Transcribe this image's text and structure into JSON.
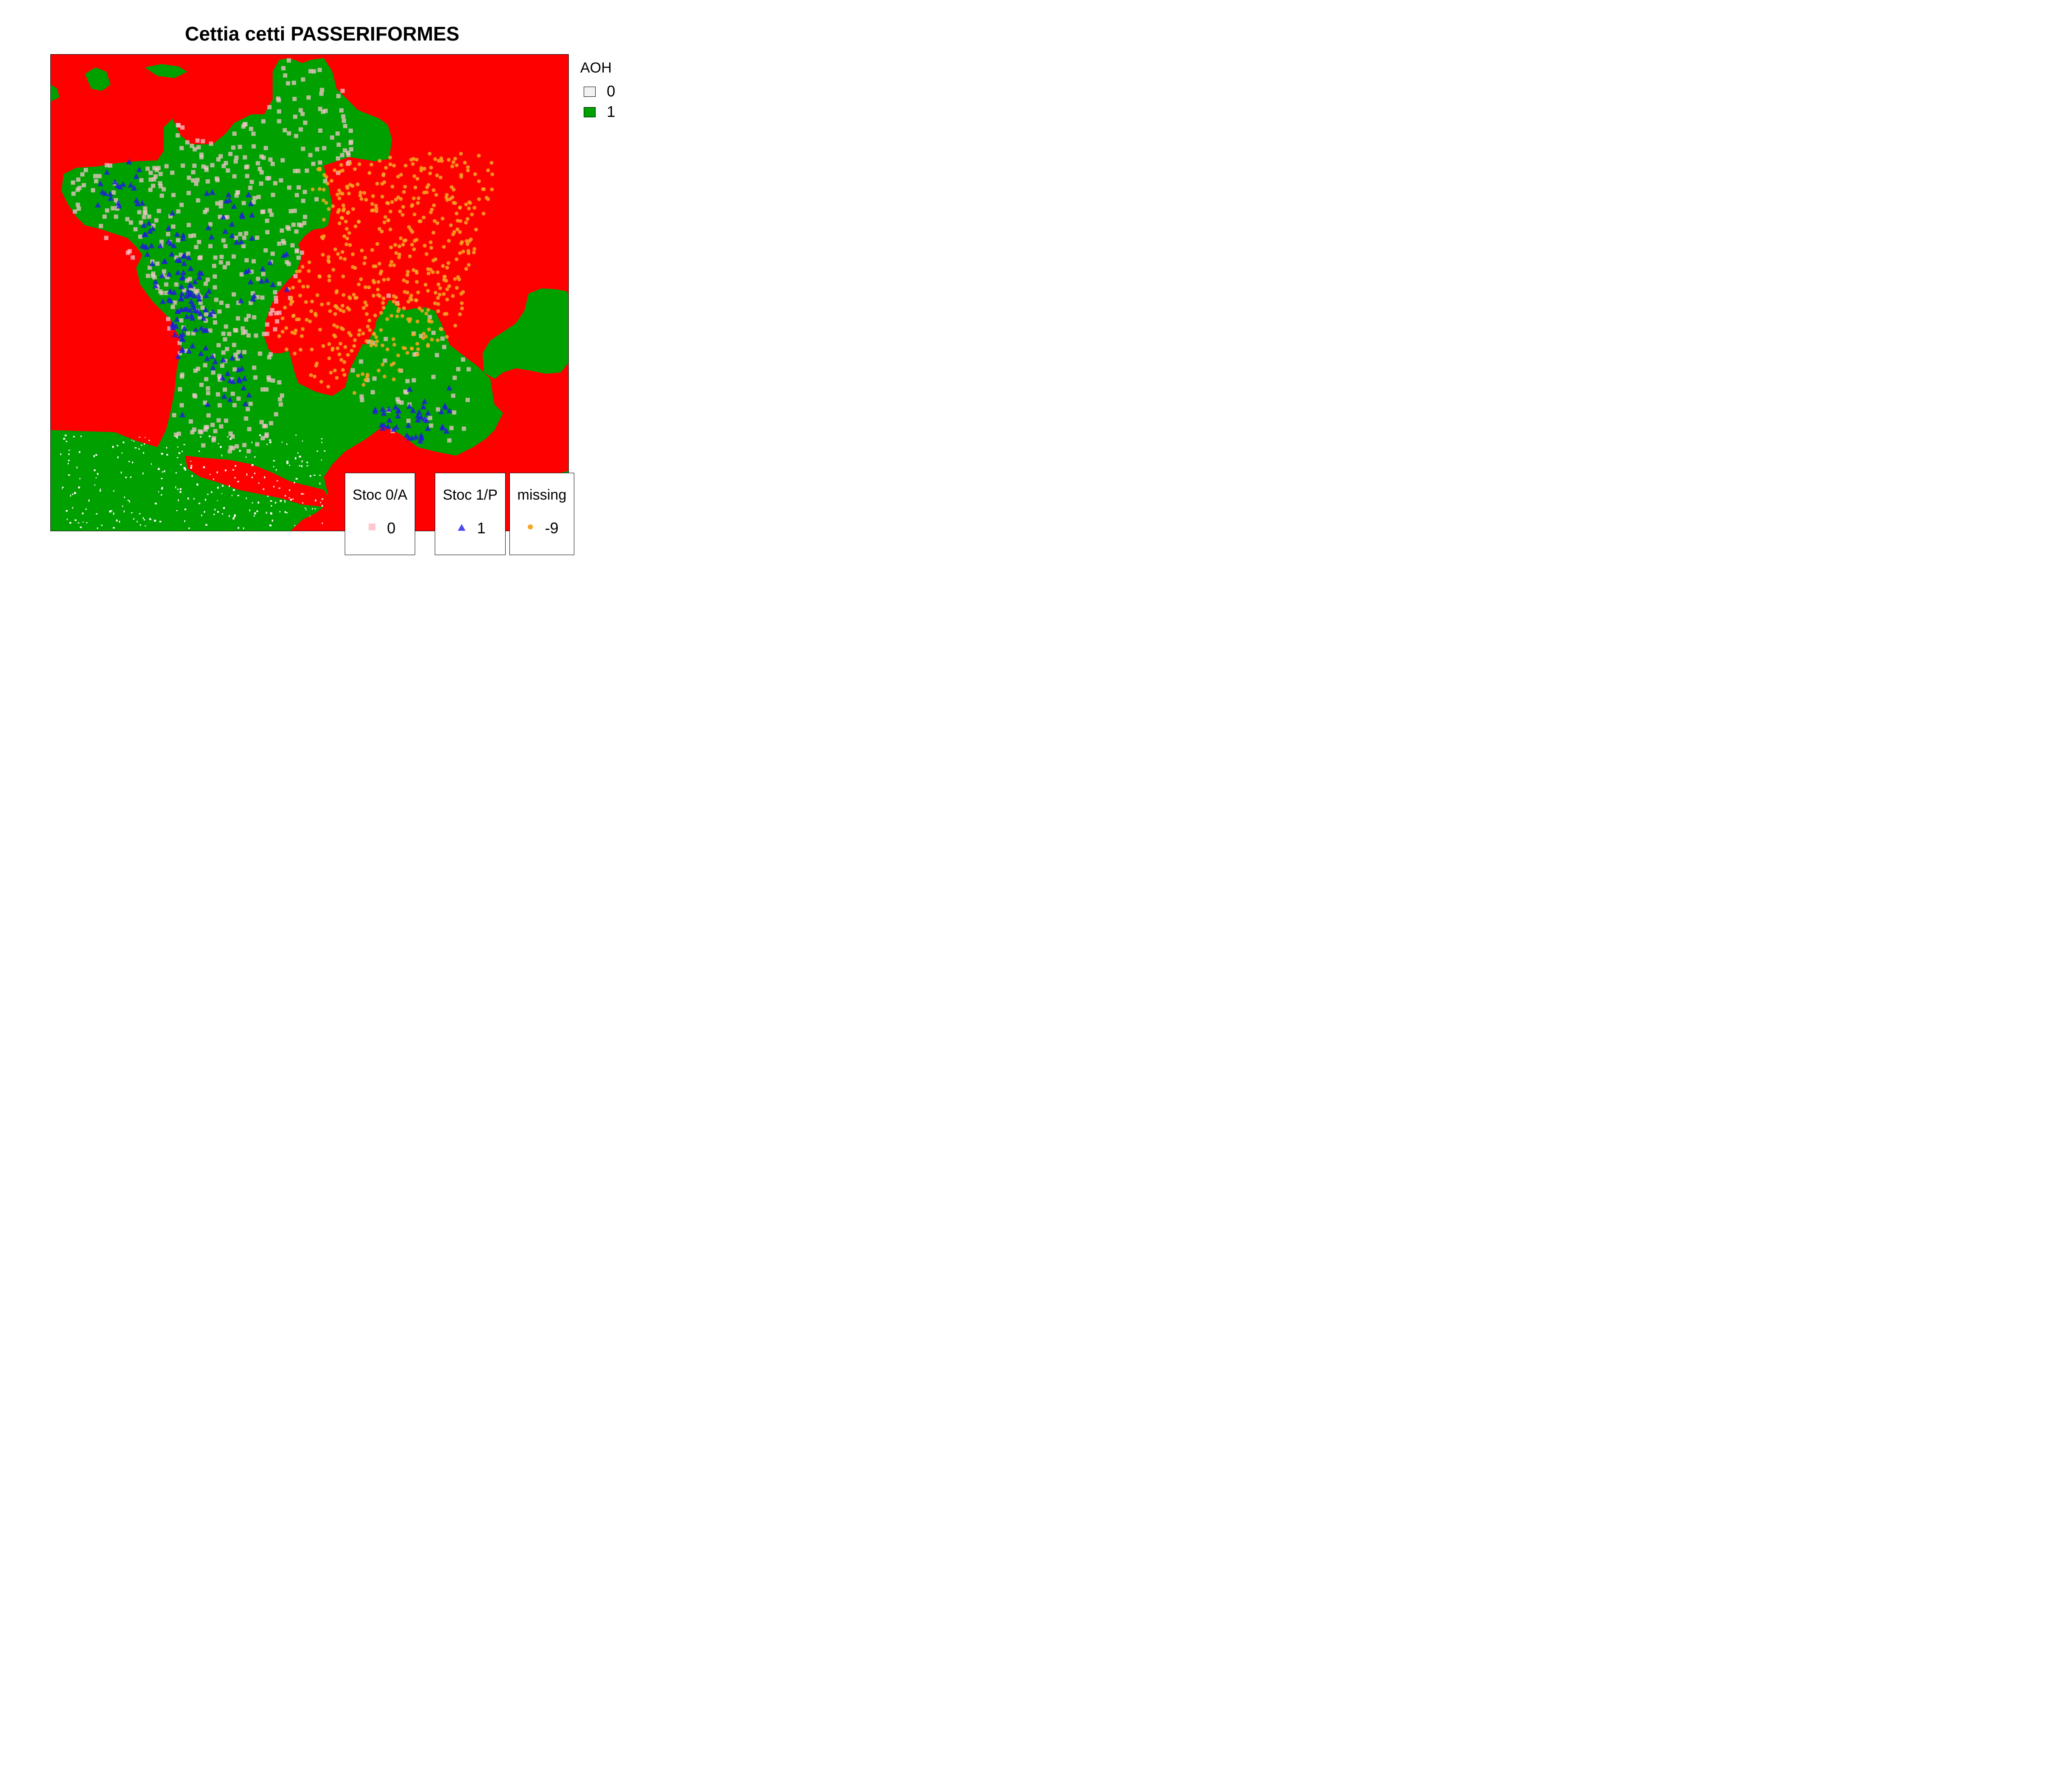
{
  "title": "Cettia cetti PASSERIFORMES",
  "colors": {
    "sea_unsuitable": "#ff0000",
    "habitat_suitable": "#00a000",
    "aoh_zero_swatch": "#f2f2f2",
    "stoc_absence": "#ffc8d0",
    "stoc_presence": "#2a2ae8",
    "missing": "#f5a623"
  },
  "aoh_legend": {
    "title": "AOH",
    "items": [
      {
        "label": "0",
        "color": "#f2f2f2"
      },
      {
        "label": "1",
        "color": "#00a000"
      }
    ]
  },
  "point_legends": [
    {
      "title": "Stoc 0/A",
      "label": "0",
      "symbol": "square",
      "color": "#ffc8d0"
    },
    {
      "title": "Stoc 1/P",
      "label": "1",
      "symbol": "triangle",
      "color": "#4a4af0"
    },
    {
      "title": "missing",
      "label": "-9",
      "symbol": "circle",
      "color": "#f5a623"
    }
  ],
  "map": {
    "region": "France",
    "point_symbols": [
      "square-pink",
      "triangle-blue",
      "circle-orange"
    ]
  }
}
